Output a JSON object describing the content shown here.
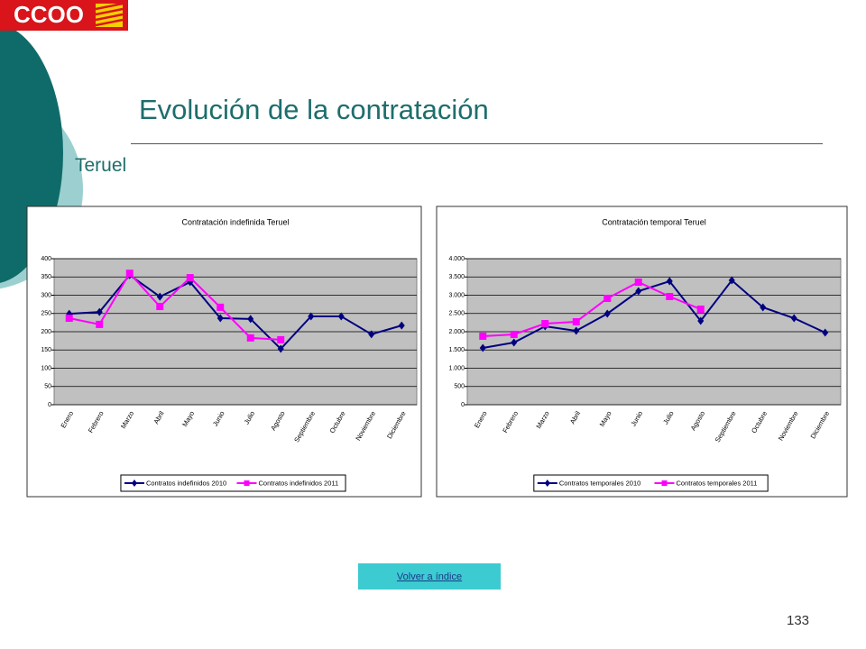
{
  "slide": {
    "logo": "CCOO",
    "title": "Evolución de la contratación",
    "subtitle": "Teruel",
    "link": "Volver a índice",
    "page_number": "133"
  },
  "chart_data": [
    {
      "type": "line",
      "title": "Contratación indefinida Teruel",
      "categories": [
        "Enero",
        "Febrero",
        "Marzo",
        "Abril",
        "Mayo",
        "Junio",
        "Julio",
        "Agosto",
        "Septiembre",
        "Octubre",
        "Noviembre",
        "Diciembre"
      ],
      "series": [
        {
          "name": "Contratos indefinidos 2010",
          "color": "#000080",
          "marker": "diamond",
          "values": [
            249,
            254,
            355,
            296,
            336,
            237,
            235,
            153,
            242,
            242,
            193,
            217
          ]
        },
        {
          "name": "Contratos indefinidos 2011",
          "color": "#ff00ff",
          "marker": "square",
          "values": [
            237,
            220,
            360,
            269,
            348,
            267,
            183,
            178,
            null,
            null,
            null,
            null
          ]
        }
      ],
      "ylim": [
        0,
        400
      ],
      "yticks": [
        0,
        50,
        100,
        150,
        200,
        250,
        300,
        350,
        400
      ],
      "grid": true,
      "legend": "bottom"
    },
    {
      "type": "line",
      "title": "Contratación temporal Teruel",
      "categories": [
        "Enero",
        "Febrero",
        "Marzo",
        "Abril",
        "Mayo",
        "Junio",
        "Julio",
        "Agosto",
        "Septiembre",
        "Octubre",
        "Noviembre",
        "Diciembre"
      ],
      "series": [
        {
          "name": "Contratos temporales 2010",
          "color": "#000080",
          "marker": "diamond",
          "values": [
            1556,
            1704,
            2148,
            2025,
            2494,
            3111,
            3383,
            2296,
            3407,
            2667,
            2370,
            1975
          ]
        },
        {
          "name": "Contratos temporales 2011",
          "color": "#ff00ff",
          "marker": "square",
          "values": [
            1877,
            1926,
            2222,
            2272,
            2914,
            3358,
            2963,
            2617,
            null,
            null,
            null,
            null
          ]
        }
      ],
      "ylim": [
        0,
        4000
      ],
      "yticks": [
        0,
        500,
        {
          "value": 1000,
          "label": "1.000"
        },
        {
          "value": 1500,
          "label": "1.500"
        },
        {
          "value": 2000,
          "label": "2.000"
        },
        {
          "value": 2500,
          "label": "2.500"
        },
        {
          "value": 3000,
          "label": "3.000"
        },
        {
          "value": 3500,
          "label": "3.500"
        },
        {
          "value": 4000,
          "label": "4.000"
        }
      ],
      "grid": true,
      "legend": "bottom"
    }
  ]
}
